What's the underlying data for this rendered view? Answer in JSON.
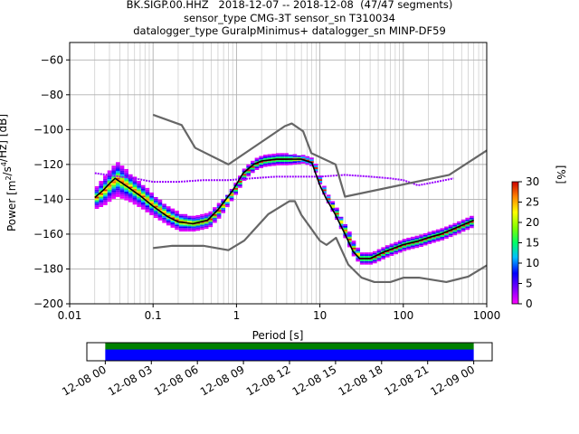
{
  "title_lines": [
    "BK.SIGP.00.HHZ   2018-12-07 -- 2018-12-08  (47/47 segments)",
    "sensor_type CMG-3T sensor_sn T310034",
    "datalogger_type GuralpMinimus+ datalogger_sn MINP-DF59"
  ],
  "colorbar": {
    "label": "[%]",
    "ticks": [
      "0",
      "5",
      "10",
      "15",
      "20",
      "25",
      "30"
    ],
    "range": [
      0,
      30
    ]
  },
  "chart_data": [
    {
      "type": "heatmap",
      "title": "BK.SIGP.00.HHZ   2018-12-07 -- 2018-12-08  (47/47 segments)",
      "xlabel": "Period [s]",
      "ylabel": "Power [m²/s⁴/Hz] [dB]",
      "ylabel_parts": [
        "Power [",
        "m",
        "2",
        "/",
        "s",
        "4",
        "/Hz",
        "] [dB]"
      ],
      "xscale": "log",
      "xlim": [
        0.01,
        1000
      ],
      "ylim": [
        -200,
        -50
      ],
      "x_ticks": [
        "0.01",
        "0.1",
        "1",
        "10",
        "100",
        "1000"
      ],
      "x_tick_values": [
        0.01,
        0.1,
        1,
        10,
        100,
        1000
      ],
      "y_ticks": [
        "−200",
        "−180",
        "−160",
        "−140",
        "−120",
        "−100",
        "−80",
        "−60"
      ],
      "y_tick_values": [
        -200,
        -180,
        -160,
        -140,
        -120,
        -100,
        -80,
        -60
      ],
      "grid": true,
      "series": [
        {
          "role": "nhnm",
          "color": "#666666",
          "x": [
            0.1,
            0.22,
            0.32,
            0.8,
            3.8,
            4.6,
            6.3,
            7.9,
            15.4,
            20,
            354.8,
            1000
          ],
          "y": [
            -91.5,
            -97.4,
            -110.5,
            -120,
            -98,
            -96.5,
            -101,
            -113.5,
            -120,
            -138.5,
            -126,
            -112
          ]
        },
        {
          "role": "nlnm",
          "color": "#666666",
          "x": [
            0.1,
            0.17,
            0.4,
            0.8,
            1.24,
            2.4,
            4.3,
            5,
            6,
            10,
            12,
            15.6,
            21.9,
            31.6,
            45,
            70,
            101,
            154,
            328,
            600,
            1000
          ],
          "y": [
            -168,
            -166.7,
            -166.7,
            -169.2,
            -163.7,
            -148.6,
            -141.1,
            -141.1,
            -149,
            -163.8,
            -166.2,
            -162.1,
            -177.5,
            -185,
            -187.5,
            -187.5,
            -185,
            -185,
            -187.5,
            -184.4,
            -178
          ]
        },
        {
          "role": "mode",
          "color": "#000000",
          "x": [
            0.02,
            0.025,
            0.03,
            0.035,
            0.05,
            0.07,
            0.1,
            0.15,
            0.2,
            0.3,
            0.45,
            0.6,
            0.9,
            1.2,
            1.6,
            2,
            3,
            4,
            6,
            8,
            10,
            12,
            15,
            20,
            25,
            30,
            40,
            60,
            100,
            150,
            200,
            280,
            400,
            500,
            700
          ],
          "y": [
            -139,
            -135,
            -131,
            -128,
            -133,
            -138,
            -144,
            -150,
            -153,
            -154,
            -152,
            -146,
            -135,
            -125,
            -120,
            -118,
            -117,
            -117,
            -117,
            -119,
            -132,
            -140,
            -148,
            -160,
            -170,
            -174,
            -174,
            -170,
            -166,
            -164,
            -162,
            -160,
            -157,
            -155,
            -152
          ]
        }
      ],
      "pdf_band": {
        "x": [
          0.02,
          0.025,
          0.03,
          0.035,
          0.05,
          0.07,
          0.1,
          0.15,
          0.2,
          0.3,
          0.45,
          0.6,
          0.9,
          1.2,
          1.6,
          2,
          3,
          4,
          6,
          8,
          10,
          12,
          15,
          20,
          25,
          30,
          40,
          60,
          100,
          150,
          200,
          280,
          400,
          500,
          700
        ],
        "spread_db": [
          6,
          8,
          9,
          10,
          8,
          7,
          6,
          5,
          5,
          4,
          4,
          4,
          3,
          3,
          3,
          3,
          3,
          3,
          2,
          2,
          2,
          2,
          3,
          4,
          4,
          3,
          3,
          3,
          3,
          3,
          3,
          3,
          3,
          3,
          3
        ],
        "peak_percent": 30
      },
      "outlier_line": {
        "color": "#9900ff",
        "x": [
          0.02,
          0.04,
          0.06,
          0.1,
          0.2,
          0.4,
          0.8,
          1.5,
          3,
          6,
          10,
          20,
          40,
          70,
          100,
          150,
          250,
          400
        ],
        "y": [
          -125,
          -127,
          -128,
          -130,
          -130,
          -129,
          -129,
          -128,
          -127,
          -127,
          -127,
          -126,
          -127,
          -128,
          -129,
          -132,
          -130,
          -128
        ]
      }
    },
    {
      "type": "timeline",
      "x_ticks": [
        "12-08 00",
        "12-08 03",
        "12-08 06",
        "12-08 09",
        "12-08 12",
        "12-08 15",
        "12-08 18",
        "12-08 21",
        "12-09 00"
      ],
      "x_tick_hours": [
        0,
        3,
        6,
        9,
        12,
        15,
        18,
        21,
        24
      ],
      "xlim_hours": [
        -1.2,
        25.2
      ],
      "bars": [
        {
          "role": "data",
          "color": "#008000",
          "start_hour": 0,
          "end_hour": 24
        },
        {
          "role": "psd",
          "color": "#0000ff",
          "start_hour": 0,
          "end_hour": 24
        }
      ]
    }
  ]
}
